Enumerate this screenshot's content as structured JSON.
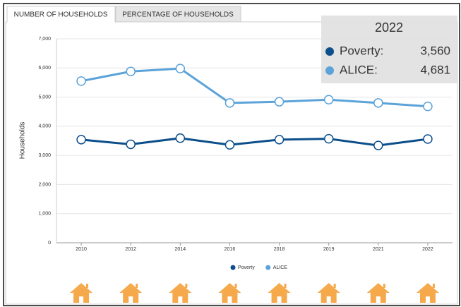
{
  "tabs": [
    "NUMBER OF HOUSEHOLDS",
    "PERCENTAGE OF HOUSEHOLDS"
  ],
  "chart_data": {
    "type": "line",
    "y_label": "Households",
    "categories": [
      "2010",
      "2012",
      "2014",
      "2016",
      "2018",
      "2019",
      "2021",
      "2022"
    ],
    "series": [
      {
        "name": "Poverty",
        "color": "#0d4f8b",
        "values": [
          3540,
          3380,
          3590,
          3360,
          3540,
          3570,
          3340,
          3560
        ]
      },
      {
        "name": "ALICE",
        "color": "#5ba3d9",
        "values": [
          5550,
          5880,
          5980,
          4800,
          4840,
          4910,
          4800,
          4681
        ]
      }
    ],
    "ylim": [
      0,
      7000
    ],
    "yticks": [
      0,
      {
        "value": 1000,
        "label": "1,000"
      },
      {
        "value": 2000,
        "label": "2,000"
      },
      {
        "value": 3000,
        "label": "3,000"
      },
      {
        "value": 4000,
        "label": "4,000"
      },
      {
        "value": 5000,
        "label": "5,000"
      },
      {
        "value": 6000,
        "label": "6,000"
      },
      {
        "value": 7000,
        "label": "7,000"
      }
    ],
    "grid": true,
    "legend": "bottom",
    "tooltip": {
      "title": "2022",
      "rows": [
        {
          "label": "Poverty:",
          "value": "3,560"
        },
        {
          "label": "ALICE:",
          "value": "4,681"
        }
      ]
    }
  }
}
